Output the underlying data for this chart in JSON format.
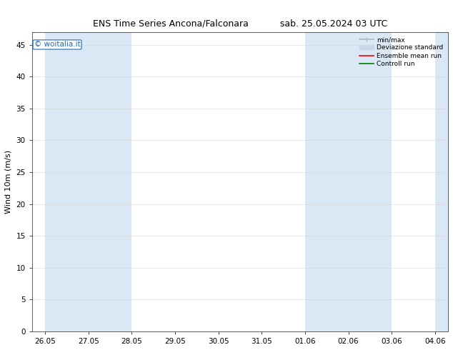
{
  "title_left": "ENS Time Series Ancona/Falconara",
  "title_right": "sab. 25.05.2024 03 UTC",
  "ylabel": "Wind 10m (m/s)",
  "watermark": "© woitalia.it",
  "ylim": [
    0,
    47
  ],
  "yticks": [
    0,
    5,
    10,
    15,
    20,
    25,
    30,
    35,
    40,
    45
  ],
  "xtick_labels": [
    "26.05",
    "27.05",
    "28.05",
    "29.05",
    "30.05",
    "31.05",
    "01.06",
    "02.06",
    "03.06",
    "04.06"
  ],
  "band_color": "#dae8f5",
  "background_color": "#ffffff",
  "title_fontsize": 9,
  "axis_fontsize": 8,
  "tick_fontsize": 7.5,
  "legend_items": [
    {
      "label": "min/max",
      "color": "#a8b8c8",
      "lw": 1.2
    },
    {
      "label": "Deviazione standard",
      "color": "#c8d8e8",
      "lw": 5
    },
    {
      "label": "Ensemble mean run",
      "color": "#ff0000",
      "lw": 1.2
    },
    {
      "label": "Controll run",
      "color": "#008000",
      "lw": 1.2
    }
  ],
  "shaded_bands": [
    {
      "xmin": 0.0,
      "xmax": 1.0
    },
    {
      "xmin": 1.0,
      "xmax": 2.0
    },
    {
      "xmin": 6.0,
      "xmax": 7.0
    },
    {
      "xmin": 7.0,
      "xmax": 8.0
    },
    {
      "xmin": 9.0,
      "xmax": 10.0
    }
  ],
  "x_total_days": 10,
  "x_start": 0,
  "x_end": 10
}
